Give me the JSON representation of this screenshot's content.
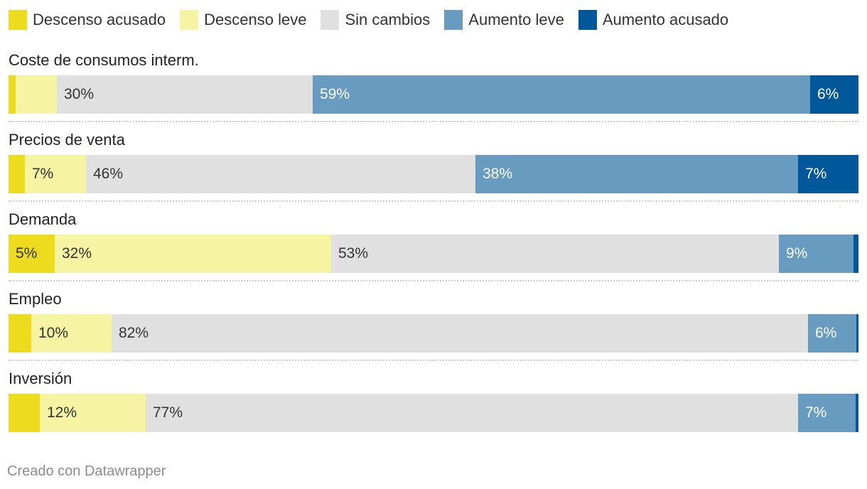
{
  "chart_data": {
    "type": "bar",
    "orientation": "horizontal-stacked-100",
    "xlim": [
      0,
      100
    ],
    "legend_position": "top-left",
    "grid": false,
    "series": [
      {
        "name": "Descenso acusado",
        "color": "#eddc1e"
      },
      {
        "name": "Descenso leve",
        "color": "#f6f3a2"
      },
      {
        "name": "Sin cambios",
        "color": "#e0e0e0"
      },
      {
        "name": "Aumento leve",
        "color": "#679cc0"
      },
      {
        "name": "Aumento acusado",
        "color": "#00589a"
      }
    ],
    "categories": [
      {
        "label": "Coste de consumos interm.",
        "values": [
          0.8,
          4.9,
          30.3,
          58.9,
          5.7
        ],
        "labels": [
          "",
          "",
          "30%",
          "59%",
          "6%"
        ]
      },
      {
        "label": "Precios de venta",
        "values": [
          1.9,
          7.2,
          45.9,
          38.0,
          7.1
        ],
        "labels": [
          "",
          "7%",
          "46%",
          "38%",
          "7%"
        ]
      },
      {
        "label": "Demanda",
        "values": [
          5.4,
          32.5,
          52.7,
          8.8,
          0.6
        ],
        "labels": [
          "5%",
          "32%",
          "53%",
          "9%",
          ""
        ]
      },
      {
        "label": "Empleo",
        "values": [
          2.7,
          9.5,
          82.3,
          5.7,
          0.2
        ],
        "labels": [
          "",
          "10%",
          "82%",
          "6%",
          ""
        ]
      },
      {
        "label": "Inversión",
        "values": [
          3.7,
          12.5,
          76.8,
          6.8,
          0.3
        ],
        "labels": [
          "",
          "12%",
          "77%",
          "7%",
          ""
        ]
      }
    ],
    "label_colors": [
      "#333333",
      "#333333",
      "#333333",
      "#ffffff",
      "#ffffff"
    ]
  },
  "footer": "Creado con Datawrapper"
}
